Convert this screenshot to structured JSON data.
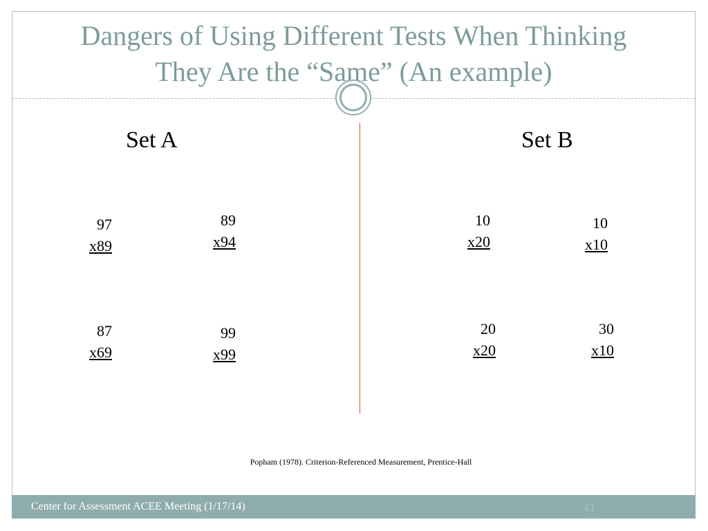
{
  "title_line1": "Dangers of Using Different Tests When Thinking",
  "title_line2": "They Are the “Same” (An example)",
  "set_a": {
    "heading": "Set A",
    "problems": [
      {
        "top": "97",
        "bottom": "x89"
      },
      {
        "top": "89",
        "bottom": "x94"
      },
      {
        "top": "87",
        "bottom": "x69"
      },
      {
        "top": "99",
        "bottom": "x99"
      }
    ]
  },
  "set_b": {
    "heading": "Set B",
    "problems": [
      {
        "top": "10",
        "bottom": "x20"
      },
      {
        "top": "10",
        "bottom": "x10"
      },
      {
        "top": "20",
        "bottom": "x20"
      },
      {
        "top": "30",
        "bottom": "x10"
      }
    ]
  },
  "citation": "Popham (1978). Criterion-Referenced Measurement, Prentice-Hall",
  "footer": {
    "text": "Center for Assessment ACEE Meeting (1/17/14)",
    "page_number": "41"
  },
  "colors": {
    "title": "#7d9b9b",
    "footer_bar": "#8facac",
    "divider_line": "#c0553a"
  }
}
